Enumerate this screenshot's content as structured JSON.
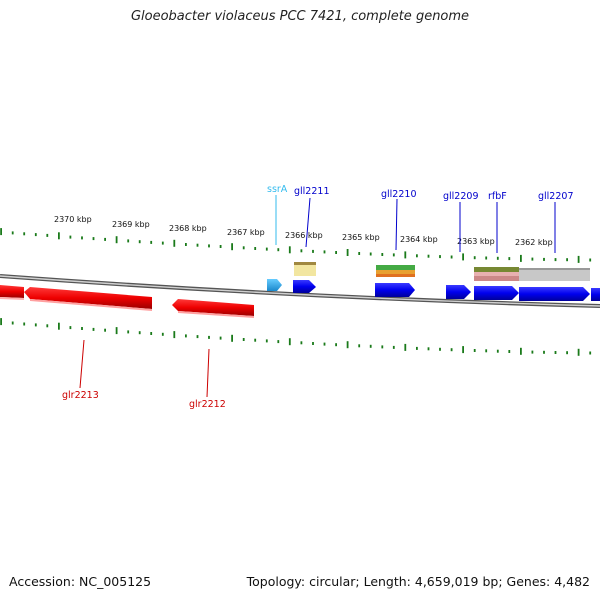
{
  "title": "Gloeobacter violaceus PCC 7421, complete genome",
  "footer": {
    "accession": "Accession: NC_005125",
    "summary": "Topology: circular; Length: 4,659,019 bp; Genes: 4,482"
  },
  "scale_labels": [
    "2370 kbp",
    "2369 kbp",
    "2368 kbp",
    "2367 kbp",
    "2366 kbp",
    "2365 kbp",
    "2364 kbp",
    "2363 kbp",
    "2362 kbp"
  ],
  "genes": [
    {
      "name": "ssrA",
      "strand": "forward",
      "color": "#33bbee"
    },
    {
      "name": "gll2211",
      "strand": "forward",
      "color": "#0000cc"
    },
    {
      "name": "gll2210",
      "strand": "forward",
      "color": "#0000cc"
    },
    {
      "name": "gll2209",
      "strand": "forward",
      "color": "#0000cc"
    },
    {
      "name": "rfbF",
      "strand": "forward",
      "color": "#0000cc"
    },
    {
      "name": "gll2207",
      "strand": "forward",
      "color": "#0000cc"
    },
    {
      "name": "glr2213",
      "strand": "reverse",
      "color": "#cc0000"
    },
    {
      "name": "glr2212",
      "strand": "reverse",
      "color": "#cc0000"
    }
  ],
  "colors": {
    "forward_gene": "#0000ee",
    "reverse_gene": "#ee0000",
    "rna_gene": "#33aadd",
    "tick": "#1a7a1a",
    "backbone": "#888888"
  }
}
